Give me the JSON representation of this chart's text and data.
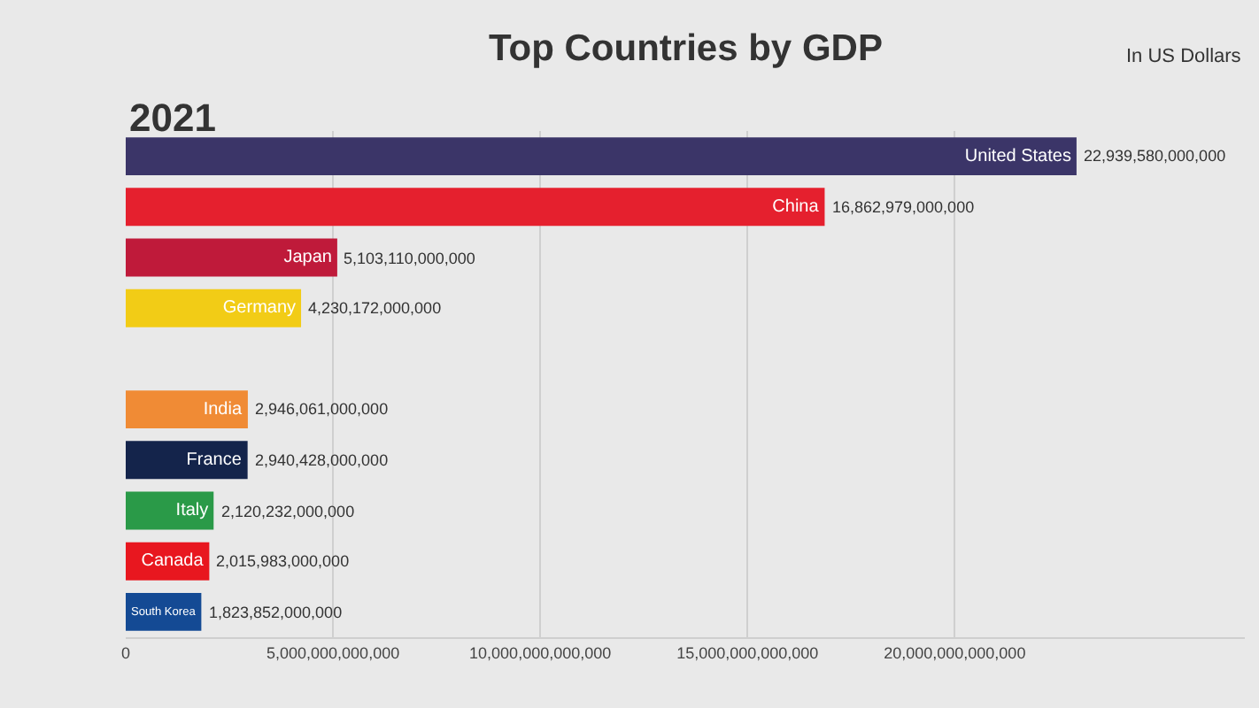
{
  "chart_data": {
    "type": "bar",
    "orientation": "horizontal",
    "title": "Top Countries by GDP",
    "subtitle": "In US Dollars",
    "annotations": [
      "2021"
    ],
    "categories": [
      "United States",
      "China",
      "Japan",
      "Germany",
      null,
      "India",
      "France",
      "Italy",
      "Canada",
      "South Korea"
    ],
    "values": [
      22939580000000,
      16862979000000,
      5103110000000,
      4230172000000,
      null,
      2946061000000,
      2940428000000,
      2120232000000,
      2015983000000,
      1823852000000
    ],
    "colors": [
      "#3b3568",
      "#e5202e",
      "#bf1a3a",
      "#f2cc16",
      "#2f3f2f",
      "#f08b35",
      "#14244b",
      "#2a9a48",
      "#e8171f",
      "#144a94"
    ],
    "value_labels": [
      "22,939,580,000,000",
      "16,862,979,000,000",
      "5,103,110,000,000",
      "4,230,172,000,000",
      null,
      "2,946,061,000,000",
      "2,940,428,000,000",
      "2,120,232,000,000",
      "2,015,983,000,000",
      "1,823,852,000,000"
    ],
    "xlim": [
      0,
      27000000000000
    ],
    "xticks": [
      0,
      {
        "value": 5000000000000,
        "label": "5,000,000,000,000"
      },
      {
        "value": 10000000000000,
        "label": "10,000,000,000,000"
      },
      {
        "value": 15000000000000,
        "label": "15,000,000,000,000"
      },
      {
        "value": 20000000000000,
        "label": "20,000,000,000,000"
      }
    ],
    "grid": "x",
    "tick_labels": "x",
    "legend": false
  }
}
